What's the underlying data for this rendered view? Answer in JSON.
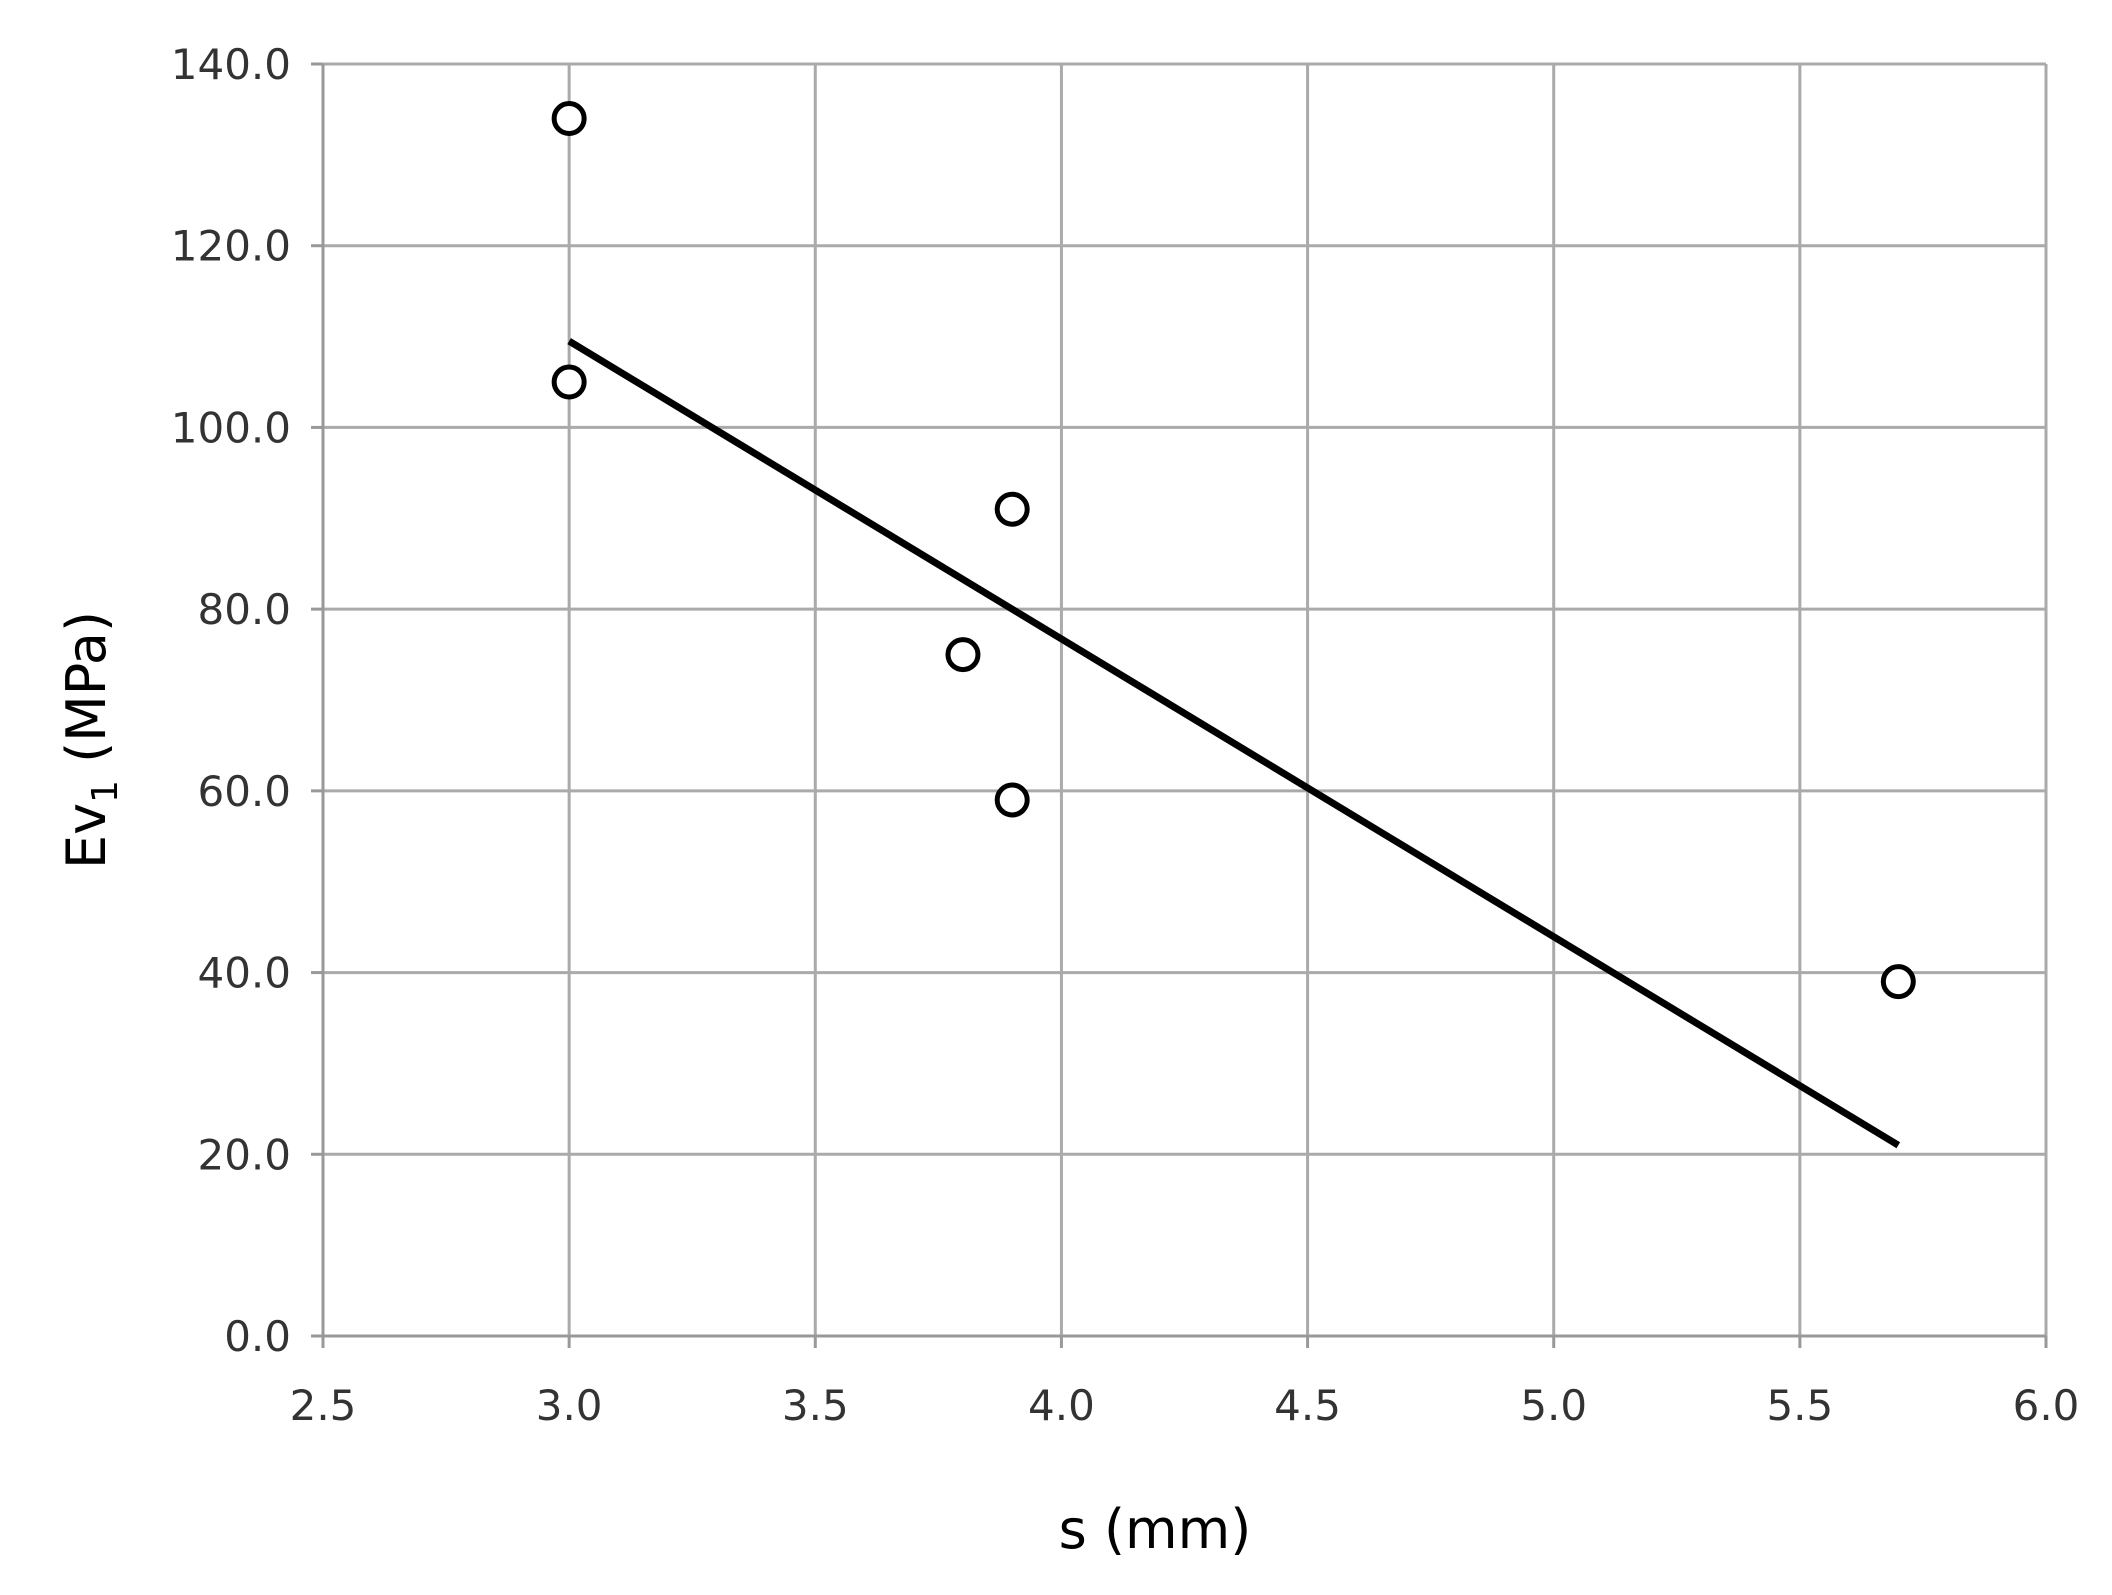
{
  "chart_data": {
    "type": "scatter",
    "title": "",
    "xlabel": "s (mm)",
    "ylabel_main": "Ev",
    "ylabel_sub": "1",
    "ylabel_rest": " (MPa)",
    "xlim": [
      2.5,
      6.0
    ],
    "ylim": [
      0,
      140
    ],
    "x_ticks": [
      "2.5",
      "3.0",
      "3.5",
      "4.0",
      "4.5",
      "5.0",
      "5.5",
      "6.0"
    ],
    "y_ticks": [
      "0.0",
      "20.0",
      "40.0",
      "60.0",
      "80.0",
      "100.0",
      "120.0",
      "140.0"
    ],
    "grid": true,
    "legend": "none",
    "points": [
      {
        "x": 3.0,
        "y": 134
      },
      {
        "x": 3.0,
        "y": 105
      },
      {
        "x": 3.9,
        "y": 91
      },
      {
        "x": 3.8,
        "y": 75
      },
      {
        "x": 3.9,
        "y": 59
      },
      {
        "x": 5.7,
        "y": 39
      }
    ],
    "trendline": {
      "x": [
        3.0,
        5.7
      ],
      "y": [
        109.5,
        21
      ]
    },
    "colors": {
      "grid": "#aaaaaa",
      "axis": "#999999",
      "marker": "#000000",
      "trend": "#000000"
    }
  }
}
